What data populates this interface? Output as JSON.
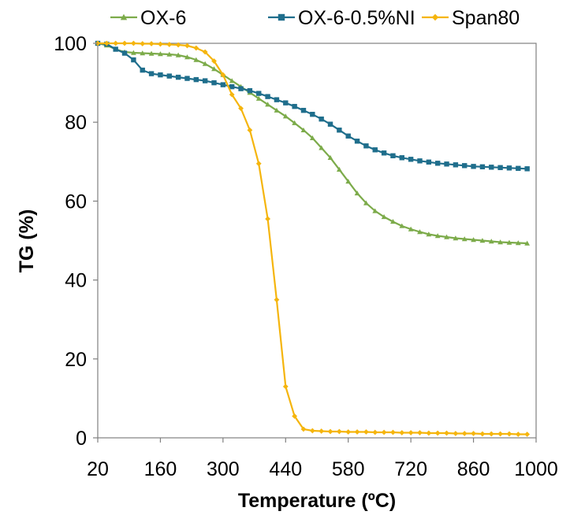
{
  "chart_data": {
    "type": "line",
    "title": "",
    "xlabel": "Temperature (ºC)",
    "ylabel": "TG (%)",
    "xlim": [
      20,
      1000
    ],
    "ylim": [
      0,
      100
    ],
    "x_ticks": [
      20,
      160,
      300,
      440,
      580,
      720,
      860,
      1000
    ],
    "y_ticks": [
      0,
      20,
      40,
      60,
      80,
      100
    ],
    "grid": false,
    "legend_position": "top",
    "series": [
      {
        "name": "OX-6",
        "color": "#7cab4a",
        "marker": "triangle",
        "points": [
          [
            20,
            100
          ],
          [
            40,
            99.5
          ],
          [
            60,
            98.5
          ],
          [
            80,
            97.8
          ],
          [
            100,
            97.6
          ],
          [
            120,
            97.5
          ],
          [
            140,
            97.4
          ],
          [
            160,
            97.3
          ],
          [
            180,
            97.2
          ],
          [
            200,
            97.0
          ],
          [
            220,
            96.5
          ],
          [
            240,
            95.8
          ],
          [
            260,
            94.8
          ],
          [
            280,
            93.5
          ],
          [
            300,
            92.0
          ],
          [
            320,
            90.5
          ],
          [
            340,
            89.0
          ],
          [
            360,
            87.5
          ],
          [
            380,
            86.0
          ],
          [
            400,
            84.5
          ],
          [
            420,
            83.0
          ],
          [
            440,
            81.5
          ],
          [
            460,
            79.8
          ],
          [
            480,
            78.0
          ],
          [
            500,
            76.0
          ],
          [
            520,
            73.5
          ],
          [
            540,
            71.0
          ],
          [
            560,
            68.0
          ],
          [
            580,
            65.0
          ],
          [
            600,
            62.0
          ],
          [
            620,
            59.5
          ],
          [
            640,
            57.5
          ],
          [
            660,
            56.0
          ],
          [
            680,
            54.8
          ],
          [
            700,
            53.7
          ],
          [
            720,
            52.9
          ],
          [
            740,
            52.2
          ],
          [
            760,
            51.6
          ],
          [
            780,
            51.2
          ],
          [
            800,
            50.9
          ],
          [
            820,
            50.6
          ],
          [
            840,
            50.4
          ],
          [
            860,
            50.2
          ],
          [
            880,
            50.0
          ],
          [
            900,
            49.8
          ],
          [
            920,
            49.6
          ],
          [
            940,
            49.5
          ],
          [
            960,
            49.4
          ],
          [
            980,
            49.3
          ]
        ]
      },
      {
        "name": "OX-6-0.5%NI",
        "color": "#1f6e8c",
        "marker": "square",
        "points": [
          [
            20,
            100
          ],
          [
            40,
            99.8
          ],
          [
            60,
            98.5
          ],
          [
            80,
            97.5
          ],
          [
            100,
            95.8
          ],
          [
            120,
            93.2
          ],
          [
            140,
            92.3
          ],
          [
            160,
            92.0
          ],
          [
            180,
            91.7
          ],
          [
            200,
            91.4
          ],
          [
            220,
            91.1
          ],
          [
            240,
            90.8
          ],
          [
            260,
            90.5
          ],
          [
            280,
            90.0
          ],
          [
            300,
            89.5
          ],
          [
            320,
            89.0
          ],
          [
            340,
            88.5
          ],
          [
            360,
            88.0
          ],
          [
            380,
            87.3
          ],
          [
            400,
            86.5
          ],
          [
            420,
            85.7
          ],
          [
            440,
            84.9
          ],
          [
            460,
            84.0
          ],
          [
            480,
            83.0
          ],
          [
            500,
            82.0
          ],
          [
            520,
            80.8
          ],
          [
            540,
            79.5
          ],
          [
            560,
            78.0
          ],
          [
            580,
            76.5
          ],
          [
            600,
            75.2
          ],
          [
            620,
            74.0
          ],
          [
            640,
            73.0
          ],
          [
            660,
            72.2
          ],
          [
            680,
            71.5
          ],
          [
            700,
            71.0
          ],
          [
            720,
            70.6
          ],
          [
            740,
            70.2
          ],
          [
            760,
            69.9
          ],
          [
            780,
            69.6
          ],
          [
            800,
            69.4
          ],
          [
            820,
            69.2
          ],
          [
            840,
            69.0
          ],
          [
            860,
            68.8
          ],
          [
            880,
            68.7
          ],
          [
            900,
            68.6
          ],
          [
            920,
            68.5
          ],
          [
            940,
            68.4
          ],
          [
            960,
            68.3
          ],
          [
            980,
            68.2
          ]
        ]
      },
      {
        "name": "Span80",
        "color": "#f5b50d",
        "marker": "diamond",
        "points": [
          [
            20,
            100
          ],
          [
            40,
            100
          ],
          [
            60,
            100
          ],
          [
            80,
            100
          ],
          [
            100,
            100
          ],
          [
            120,
            99.9
          ],
          [
            140,
            99.9
          ],
          [
            160,
            99.8
          ],
          [
            180,
            99.7
          ],
          [
            200,
            99.6
          ],
          [
            220,
            99.4
          ],
          [
            240,
            98.8
          ],
          [
            260,
            97.8
          ],
          [
            280,
            95.5
          ],
          [
            300,
            92.0
          ],
          [
            320,
            87.0
          ],
          [
            340,
            83.5
          ],
          [
            360,
            78.0
          ],
          [
            380,
            69.5
          ],
          [
            400,
            55.5
          ],
          [
            420,
            35.0
          ],
          [
            440,
            13.0
          ],
          [
            460,
            5.5
          ],
          [
            480,
            2.2
          ],
          [
            500,
            1.8
          ],
          [
            520,
            1.7
          ],
          [
            540,
            1.6
          ],
          [
            560,
            1.6
          ],
          [
            580,
            1.5
          ],
          [
            600,
            1.5
          ],
          [
            620,
            1.5
          ],
          [
            640,
            1.4
          ],
          [
            660,
            1.4
          ],
          [
            680,
            1.4
          ],
          [
            700,
            1.3
          ],
          [
            720,
            1.3
          ],
          [
            740,
            1.3
          ],
          [
            760,
            1.2
          ],
          [
            780,
            1.2
          ],
          [
            800,
            1.2
          ],
          [
            820,
            1.1
          ],
          [
            840,
            1.1
          ],
          [
            860,
            1.1
          ],
          [
            880,
            1.0
          ],
          [
            900,
            1.0
          ],
          [
            920,
            1.0
          ],
          [
            940,
            1.0
          ],
          [
            960,
            0.9
          ],
          [
            980,
            0.9
          ]
        ]
      }
    ]
  }
}
